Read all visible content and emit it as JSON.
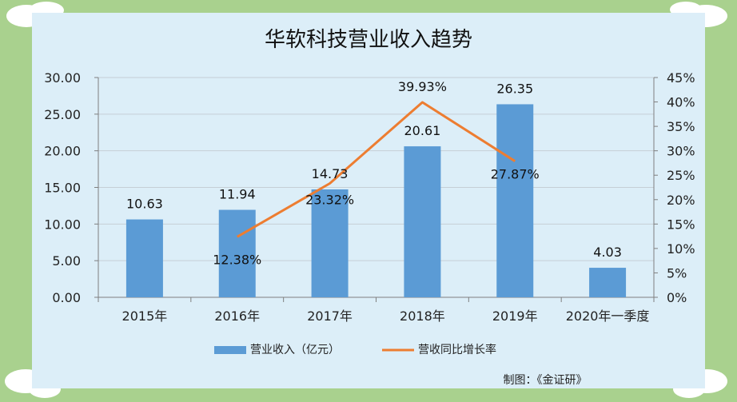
{
  "chart_data": {
    "type": "bar",
    "title": "华软科技营业收入趋势",
    "categories": [
      "2015年",
      "2016年",
      "2017年",
      "2018年",
      "2019年",
      "2020年一季度"
    ],
    "series": [
      {
        "name": "营业收入（亿元）",
        "type": "bar",
        "axis": "left",
        "values": [
          10.63,
          11.94,
          14.73,
          20.61,
          26.35,
          4.03
        ],
        "labels": [
          "10.63",
          "11.94",
          "14.73",
          "20.61",
          "26.35",
          "4.03"
        ],
        "color": "#5b9bd5"
      },
      {
        "name": "营收同比增长率",
        "type": "line",
        "axis": "right",
        "values": [
          null,
          12.38,
          23.32,
          39.93,
          27.87,
          null
        ],
        "labels": [
          "",
          "12.38%",
          "23.32%",
          "39.93%",
          "27.87%",
          ""
        ],
        "color": "#ed7d31"
      }
    ],
    "y_left": {
      "ylim": [
        0,
        30
      ],
      "ticks": [
        "0.00",
        "5.00",
        "10.00",
        "15.00",
        "20.00",
        "25.00",
        "30.00"
      ]
    },
    "y_right": {
      "ylim": [
        0,
        45
      ],
      "ticks": [
        "0%",
        "5%",
        "10%",
        "15%",
        "20%",
        "25%",
        "30%",
        "35%",
        "40%",
        "45%"
      ]
    },
    "legend_position": "bottom",
    "credit": "制图：《金证研》"
  }
}
